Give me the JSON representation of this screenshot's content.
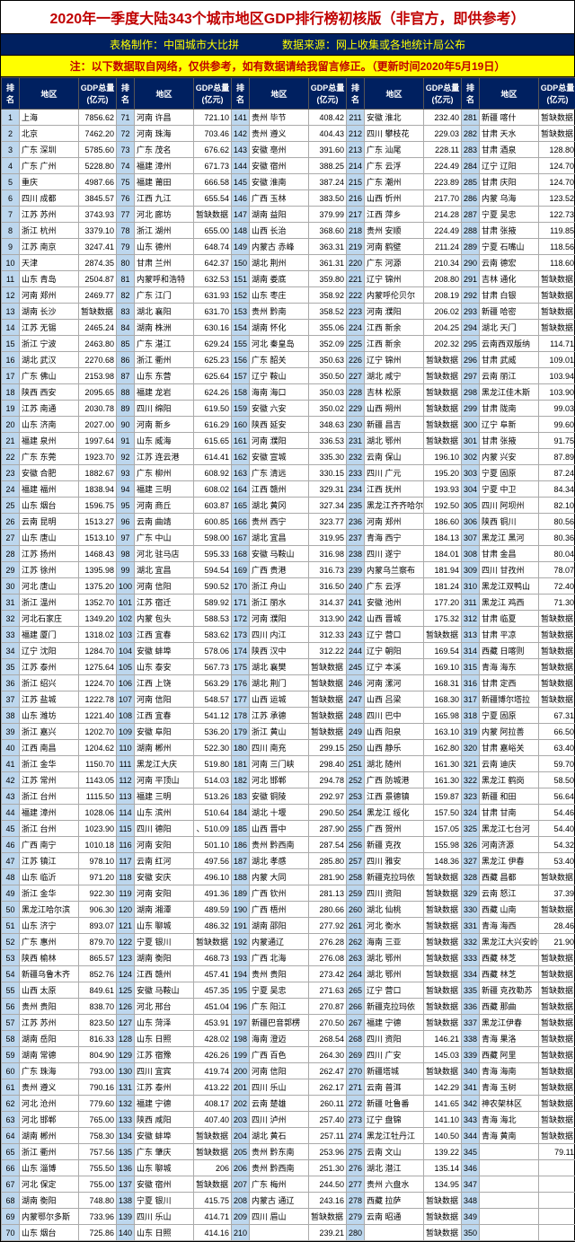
{
  "title": "2020年一季度大陆343个城市地区GDP排行榜初核版（非官方，即供参考）",
  "sub1": "表格制作：中国城市大比拼　　　　数据来源：网上收集或各地统计局公布",
  "sub2": "注：以下数据取自网络，仅供参考，如有数据请给我留言修正。（更新时间2020年5月19日）",
  "headers": [
    "排名",
    "地区",
    "GDP总量(亿元)"
  ],
  "nodata": "暂缺数据",
  "colors": {
    "title": "#c00000",
    "header_bg": "#002060",
    "header_fg": "#ffffff",
    "sub1_bg": "#002060",
    "sub1_fg": "#ffff00",
    "sub2_bg": "#ffff00",
    "sub2_fg": "#c00000",
    "rank_bg": "#bdd7ee"
  },
  "rows": [
    [
      1,
      "上海",
      "7856.62",
      71,
      "河南 许昌",
      "721.10",
      141,
      "贵州 毕节",
      "408.42",
      211,
      "安徽 淮北",
      "232.40",
      281,
      "新疆 喀什",
      null
    ],
    [
      2,
      "北京",
      "7462.20",
      72,
      "河南 珠海",
      "703.46",
      142,
      "贵州 遵义",
      "404.43",
      212,
      "四川 攀枝花",
      "229.03",
      282,
      "甘肃 天水",
      null
    ],
    [
      3,
      "广东 深圳",
      "5785.60",
      73,
      "广东 茂名",
      "676.62",
      143,
      "安徽 亳州",
      "391.60",
      213,
      "广东 汕尾",
      "228.11",
      283,
      "甘肃 酒泉",
      "128.80"
    ],
    [
      4,
      "广东 广州",
      "5228.80",
      74,
      "福建 漳州",
      "671.73",
      144,
      "安徽 宿州",
      "388.25",
      214,
      "广东 云浮",
      "224.49",
      284,
      "辽宁 辽阳",
      "124.70"
    ],
    [
      5,
      "重庆",
      "4987.66",
      75,
      "福建 莆田",
      "666.58",
      145,
      "安徽 淮南",
      "387.24",
      215,
      "广东 潮州",
      "223.89",
      285,
      "甘肃 庆阳",
      "124.70"
    ],
    [
      6,
      "四川 成都",
      "3845.57",
      76,
      "江西 九江",
      "655.54",
      146,
      "广西 玉林",
      "383.50",
      216,
      "山西 忻州",
      "217.70",
      286,
      "内蒙 乌海",
      "123.52"
    ],
    [
      7,
      "江苏 苏州",
      "3743.93",
      77,
      "河北 廊坊",
      "暂缺数据",
      147,
      "湖南 益阳",
      "379.99",
      217,
      "江西 萍乡",
      "214.28",
      287,
      "宁夏 吴忠",
      "122.73"
    ],
    [
      8,
      "浙江 杭州",
      "3379.10",
      78,
      "浙江 湖州",
      "655.00",
      148,
      "山西 长治",
      "368.60",
      218,
      "贵州 安顺",
      "224.49",
      288,
      "甘肃 张掖",
      "119.85"
    ],
    [
      9,
      "江苏 南京",
      "3247.41",
      79,
      "山东 德州",
      "648.74",
      149,
      "内蒙古 赤峰",
      "363.31",
      219,
      "河南 鹤壁",
      "211.24",
      289,
      "宁夏 石嘴山",
      "118.56"
    ],
    [
      10,
      "天津",
      "2874.35",
      80,
      "甘肃 兰州",
      "642.37",
      150,
      "湖北 荆州",
      "361.31",
      220,
      "广东 河源",
      "210.34",
      290,
      "云南 德宏",
      "118.60"
    ],
    [
      11,
      "山东 青岛",
      "2504.87",
      81,
      "内蒙呼和浩特",
      "632.53",
      151,
      "湖南 娄底",
      "359.80",
      221,
      "辽宁 锦州",
      "208.80",
      291,
      "吉林 通化",
      null
    ],
    [
      12,
      "河南 郑州",
      "2469.77",
      82,
      "广东 江门",
      "631.93",
      152,
      "山东 枣庄",
      "358.92",
      222,
      "内蒙呼伦贝尔",
      "208.19",
      292,
      "甘肃 白银",
      null
    ],
    [
      13,
      "湖南 长沙",
      "暂缺数据",
      83,
      "湖北 襄阳",
      "631.70",
      153,
      "贵州 黔南",
      "358.52",
      223,
      "河南 濮阳",
      "206.02",
      293,
      "新疆 哈密",
      null
    ],
    [
      14,
      "江苏 无锡",
      "2465.24",
      84,
      "湖南 株洲",
      "630.16",
      154,
      "湖南 怀化",
      "355.06",
      224,
      "江西 新余",
      "204.25",
      294,
      "湖北 天门",
      null
    ],
    [
      15,
      "浙江 宁波",
      "2463.80",
      85,
      "广东 湛江",
      "629.24",
      155,
      "河北 秦皇岛",
      "352.09",
      225,
      "江西 新余",
      "202.32",
      295,
      "云南西双版纳",
      "114.71"
    ],
    [
      16,
      "湖北 武汉",
      "2270.68",
      86,
      "浙江 衢州",
      "625.23",
      156,
      "广东 韶关",
      "350.63",
      226,
      "辽宁 锦州",
      "暂缺数据",
      296,
      "甘肃 武威",
      "109.01"
    ],
    [
      17,
      "广东 佛山",
      "2153.98",
      87,
      "山东 东营",
      "625.64",
      157,
      "辽宁 鞍山",
      "350.50",
      227,
      "湖北 咸宁",
      "暂缺数据",
      297,
      "云南 丽江",
      "103.94"
    ],
    [
      18,
      "陕西 西安",
      "2095.65",
      88,
      "福建 龙岩",
      "624.26",
      158,
      "海南 海口",
      "350.03",
      228,
      "吉林 松原",
      "暂缺数据",
      298,
      "黑龙江佳木斯",
      "103.90"
    ],
    [
      19,
      "江苏 南通",
      "2030.78",
      89,
      "四川 绵阳",
      "619.50",
      159,
      "安徽 六安",
      "350.02",
      229,
      "山西 朔州",
      "暂缺数据",
      299,
      "甘肃 陇南",
      "99.03"
    ],
    [
      20,
      "山东 济南",
      "2027.00",
      90,
      "河南 新乡",
      "616.29",
      160,
      "陕西 延安",
      "348.63",
      230,
      "新疆 昌吉",
      "暂缺数据",
      300,
      "辽宁 阜新",
      "99.60"
    ],
    [
      21,
      "福建 泉州",
      "1997.64",
      91,
      "山东 威海",
      "615.65",
      161,
      "河南 濮阳",
      "336.53",
      231,
      "湖北 鄂州",
      "暂缺数据",
      301,
      "甘肃 张掖",
      "91.75"
    ],
    [
      22,
      "广东 东莞",
      "1923.70",
      92,
      "江苏 连云港",
      "614.41",
      162,
      "安徽 宣城",
      "335.30",
      232,
      "云南 保山",
      "196.10",
      302,
      "内蒙 兴安",
      "87.89"
    ],
    [
      23,
      "安徽 合肥",
      "1882.67",
      93,
      "广东 柳州",
      "608.92",
      163,
      "广东 清远",
      "330.15",
      233,
      "四川 广元",
      "195.20",
      303,
      "宁夏 固原",
      "87.24"
    ],
    [
      24,
      "福建 福州",
      "1838.94",
      94,
      "福建 三明",
      "608.02",
      164,
      "江西 赣州",
      "329.31",
      234,
      "江西 抚州",
      "193.93",
      304,
      "宁夏 中卫",
      "84.34"
    ],
    [
      25,
      "山东 烟台",
      "1596.75",
      95,
      "河南 商丘",
      "603.87",
      165,
      "湖北 黄冈",
      "327.34",
      235,
      "黑龙江齐齐哈尔",
      "192.50",
      305,
      "四川 阿坝州",
      "82.10"
    ],
    [
      26,
      "云南 昆明",
      "1513.27",
      96,
      "云南 曲靖",
      "600.85",
      166,
      "贵州 西宁",
      "323.77",
      236,
      "河南 郑州",
      "186.60",
      306,
      "陕西 铜川",
      "80.56"
    ],
    [
      27,
      "山东 唐山",
      "1513.10",
      97,
      "广东 中山",
      "598.00",
      167,
      "湖北 宜昌",
      "319.95",
      237,
      "青海 西宁",
      "184.13",
      307,
      "黑龙江 黑河",
      "80.36"
    ],
    [
      28,
      "江苏 扬州",
      "1468.43",
      98,
      "河北 驻马店",
      "595.33",
      168,
      "安徽 马鞍山",
      "316.98",
      238,
      "四川 遂宁",
      "184.01",
      308,
      "甘肃 金昌",
      "80.04"
    ],
    [
      29,
      "江苏 徐州",
      "1395.98",
      99,
      "湖北 宜昌",
      "594.54",
      169,
      "广西 贵港",
      "316.73",
      239,
      "内蒙乌兰察布",
      "181.94",
      309,
      "四川 甘孜州",
      "78.07"
    ],
    [
      30,
      "河北 唐山",
      "1375.20",
      100,
      "河南 信阳",
      "590.52",
      170,
      "浙江 舟山",
      "316.50",
      240,
      "广东 云浮",
      "181.24",
      310,
      "黑龙江双鸭山",
      "72.40"
    ],
    [
      31,
      "浙江 温州",
      "1352.70",
      101,
      "江苏 宿迁",
      "589.92",
      171,
      "浙江 丽水",
      "314.37",
      241,
      "安徽 池州",
      "177.20",
      311,
      "黑龙江 鸡西",
      "71.30"
    ],
    [
      32,
      "河北石家庄",
      "1349.20",
      102,
      "内蒙 包头",
      "588.53",
      172,
      "河南 濮阳",
      "313.90",
      242,
      "山西 晋城",
      "175.32",
      312,
      "甘肃 临夏",
      null
    ],
    [
      33,
      "福建 厦门",
      "1318.02",
      103,
      "江西 宜春",
      "583.62",
      173,
      "四川 内江",
      "312.33",
      243,
      "辽宁 营口",
      "暂缺数据",
      313,
      "甘肃 平凉",
      null
    ],
    [
      34,
      "辽宁 沈阳",
      "1284.70",
      104,
      "安徽 蚌埠",
      "578.06",
      174,
      "陕西 汉中",
      "312.22",
      244,
      "辽宁 朝阳",
      "169.54",
      314,
      "西藏 日喀则",
      null
    ],
    [
      35,
      "江苏 泰州",
      "1275.64",
      105,
      "山东 泰安",
      "567.73",
      175,
      "湖北 襄樊",
      "暂缺数据",
      245,
      "辽宁 本溪",
      "169.10",
      315,
      "青海 海东",
      null
    ],
    [
      36,
      "浙江 绍兴",
      "1224.70",
      106,
      "江西 上饶",
      "563.29",
      176,
      "湖北 荆门",
      "暂缺数据",
      246,
      "河南 漯河",
      "168.31",
      316,
      "甘肃 定西",
      null
    ],
    [
      37,
      "江苏 盐城",
      "1222.78",
      107,
      "河南 信阳",
      "548.57",
      177,
      "山西 运城",
      "暂缺数据",
      247,
      "山西 吕梁",
      "168.30",
      317,
      "新疆博尔塔拉",
      null
    ],
    [
      38,
      "山东 潍坊",
      "1221.40",
      108,
      "江西 宜春",
      "541.12",
      178,
      "江苏 承德",
      "暂缺数据",
      248,
      "四川 巴中",
      "165.98",
      318,
      "宁夏 固原",
      "67.31"
    ],
    [
      39,
      "浙江 嘉兴",
      "1202.70",
      109,
      "安徽 阜阳",
      "536.20",
      179,
      "浙江 黄山",
      "暂缺数据",
      249,
      "山西 阳泉",
      "163.10",
      319,
      "内蒙 阿拉善",
      "66.50"
    ],
    [
      40,
      "江西 南昌",
      "1204.62",
      110,
      "湖南 郴州",
      "522.30",
      180,
      "四川 南充",
      "299.15",
      250,
      "山西 静乐",
      "162.80",
      320,
      "甘肃 嘉峪关",
      "63.40"
    ],
    [
      41,
      "浙江 金华",
      "1150.70",
      111,
      "黑龙江大庆",
      "519.80",
      181,
      "河南 三门峡",
      "298.40",
      251,
      "湖北 随州",
      "161.30",
      321,
      "云南 迪庆",
      "59.70"
    ],
    [
      42,
      "江苏 常州",
      "1143.05",
      112,
      "河南 平顶山",
      "514.03",
      182,
      "河北 邯郸",
      "294.78",
      252,
      "广西 防城港",
      "161.30",
      322,
      "黑龙江 鹤岗",
      "58.50"
    ],
    [
      43,
      "浙江 台州",
      "1115.50",
      113,
      "福建 三明",
      "513.26",
      183,
      "安徽 铜陵",
      "292.97",
      253,
      "江西 景德镇",
      "159.87",
      323,
      "新疆 和田",
      "56.64"
    ],
    [
      44,
      "福建 漳州",
      "1028.06",
      114,
      "山东 滨州",
      "510.64",
      184,
      "湖北 十堰",
      "290.50",
      254,
      "黑龙江 绥化",
      "157.50",
      324,
      "甘肃 甘南",
      "54.46"
    ],
    [
      45,
      "浙江 台州",
      "1023.90",
      115,
      "四川 德阳",
      "、510.09",
      185,
      "山西 晋中",
      "287.90",
      255,
      "广西 贺州",
      "157.05",
      325,
      "黑龙江七台河",
      "54.40"
    ],
    [
      46,
      "广西 南宁",
      "1010.18",
      116,
      "河南 安阳",
      "501.10",
      186,
      "贵州 黔西南",
      "287.54",
      256,
      "新疆 克孜",
      "155.98",
      326,
      "河南济源",
      "54.32"
    ],
    [
      47,
      "江苏 镇江",
      "978.10",
      117,
      "云南 红河",
      "497.56",
      187,
      "湖北 孝感",
      "285.80",
      257,
      "四川 雅安",
      "148.36",
      327,
      "黑龙江 伊春",
      "53.40"
    ],
    [
      48,
      "山东 临沂",
      "971.20",
      118,
      "安徽 安庆",
      "496.10",
      188,
      "内蒙 大同",
      "281.90",
      258,
      "新疆克拉玛依",
      "暂缺数据",
      328,
      "西藏 昌都",
      null
    ],
    [
      49,
      "浙江 金华",
      "922.30",
      119,
      "河南 安阳",
      "491.36",
      189,
      "广西 钦州",
      "281.13",
      259,
      "四川 资阳",
      "暂缺数据",
      329,
      "云南 怒江",
      "37.39"
    ],
    [
      50,
      "黑龙江哈尔滨",
      "906.30",
      120,
      "湖南 湘潭",
      "489.59",
      190,
      "广西 梧州",
      "280.66",
      260,
      "湖北 仙桃",
      "暂缺数据",
      330,
      "西藏 山南",
      null
    ],
    [
      51,
      "山东 济宁",
      "893.07",
      121,
      "山东 聊城",
      "486.32",
      191,
      "湖南 邵阳",
      "277.92",
      261,
      "河北 衡水",
      "暂缺数据",
      331,
      "青海 海西",
      "28.46"
    ],
    [
      52,
      "广东 惠州",
      "879.70",
      122,
      "宁夏 银川",
      "暂缺数据",
      192,
      "内蒙通辽",
      "276.28",
      262,
      "海南 三亚",
      "暂缺数据",
      332,
      "黑龙江大兴安岭",
      "21.90"
    ],
    [
      53,
      "陕西 榆林",
      "865.57",
      123,
      "湖南 衡阳",
      "468.73",
      193,
      "广西 北海",
      "276.08",
      263,
      "湖北 鄂州",
      "暂缺数据",
      333,
      "西藏 林芝",
      null
    ],
    [
      54,
      "新疆乌鲁木齐",
      "852.76",
      124,
      "江西 赣州",
      "457.41",
      194,
      "贵州 贵阳",
      "273.42",
      264,
      "湖北 鄂州",
      "暂缺数据",
      334,
      "西藏 林芝",
      null
    ],
    [
      55,
      "山西 太原",
      "849.61",
      125,
      "安徽 马鞍山",
      "457.35",
      195,
      "宁夏 吴忠",
      "271.63",
      265,
      "辽宁 营口",
      "暂缺数据",
      335,
      "新疆 克孜勒苏",
      null
    ],
    [
      56,
      "贵州 贵阳",
      "838.70",
      126,
      "河北 邢台",
      "451.04",
      196,
      "广东 阳江",
      "270.87",
      266,
      "新疆克拉玛依",
      "暂缺数据",
      336,
      "西藏 那曲",
      null
    ],
    [
      57,
      "江苏 苏州",
      "823.50",
      127,
      "山东 菏泽",
      "453.91",
      197,
      "新疆巴音郭楞",
      "270.50",
      267,
      "福建 宁德",
      "暂缺数据",
      337,
      "黑龙江伊春",
      null
    ],
    [
      58,
      "湖南 岳阳",
      "816.33",
      128,
      "山东 日照",
      "428.02",
      198,
      "海南 澄迈",
      "268.54",
      268,
      "四川 资阳",
      "146.21",
      338,
      "青海 果洛",
      null
    ],
    [
      59,
      "湖南 常德",
      "804.90",
      129,
      "江苏 宿豫",
      "426.26",
      199,
      "广西 百色",
      "264.30",
      269,
      "四川 广安",
      "145.03",
      339,
      "西藏 阿里",
      null
    ],
    [
      60,
      "广东 珠海",
      "793.00",
      130,
      "四川 宜宾",
      "419.74",
      200,
      "河南 信阳",
      "262.47",
      270,
      "新疆塔城",
      "暂缺数据",
      340,
      "青海 海南",
      null
    ],
    [
      61,
      "贵州 遵义",
      "790.16",
      131,
      "江苏 泰州",
      "413.22",
      201,
      "四川 乐山",
      "262.17",
      271,
      "云南 普洱",
      "142.29",
      341,
      "青海 玉树",
      null
    ],
    [
      62,
      "河北 沧州",
      "779.60",
      132,
      "福建 宁德",
      "408.17",
      202,
      "云南 楚雄",
      "260.11",
      272,
      "新疆 吐鲁番",
      "141.65",
      342,
      "神农架林区",
      null
    ],
    [
      63,
      "河北 邯郸",
      "765.00",
      133,
      "陕西 咸阳",
      "407.40",
      203,
      "四川 泸州",
      "257.40",
      273,
      "辽宁 盘锦",
      "141.10",
      343,
      "青海 海北",
      null
    ],
    [
      64,
      "湖南 郴州",
      "758.30",
      134,
      "安徽 蚌埠",
      "暂缺数据",
      204,
      "湖北 黄石",
      "257.11",
      274,
      "黑龙江牡丹江",
      "140.50",
      344,
      "青海 黄南",
      null
    ],
    [
      65,
      "浙江 衢州",
      "757.56",
      135,
      "广东 肇庆",
      "暂缺数据",
      205,
      "贵州 黔东南",
      "253.96",
      275,
      "云南 文山",
      "139.22",
      345,
      "",
      "79.11"
    ],
    [
      66,
      "山东 淄博",
      "755.50",
      136,
      "山东 聊城",
      "206",
      206,
      "贵州 黔西南",
      "251.30",
      276,
      "湖北 潜江",
      "135.14",
      346,
      "",
      ""
    ],
    [
      67,
      "河北 保定",
      "755.00",
      137,
      "安徽 宿州",
      "暂缺数据",
      207,
      "广东 梅州",
      "244.50",
      277,
      "贵州 六盘水",
      "134.95",
      347,
      "",
      ""
    ],
    [
      68,
      "湖南 衡阳",
      "748.80",
      138,
      "宁夏 银川",
      "415.75",
      208,
      "内蒙古 通辽",
      "243.16",
      278,
      "西藏 拉萨",
      "暂缺数据",
      348,
      "",
      ""
    ],
    [
      69,
      "内蒙鄂尔多斯",
      "733.96",
      139,
      "四川 乐山",
      "414.71",
      209,
      "四川 眉山",
      "暂缺数据",
      279,
      "云南 昭通",
      "暂缺数据",
      349,
      "",
      ""
    ],
    [
      70,
      "山东 烟台",
      "725.86",
      140,
      "山东 日照",
      "414.16",
      210,
      "",
      "239.21",
      280,
      "",
      "暂缺数据",
      350,
      "",
      ""
    ]
  ]
}
